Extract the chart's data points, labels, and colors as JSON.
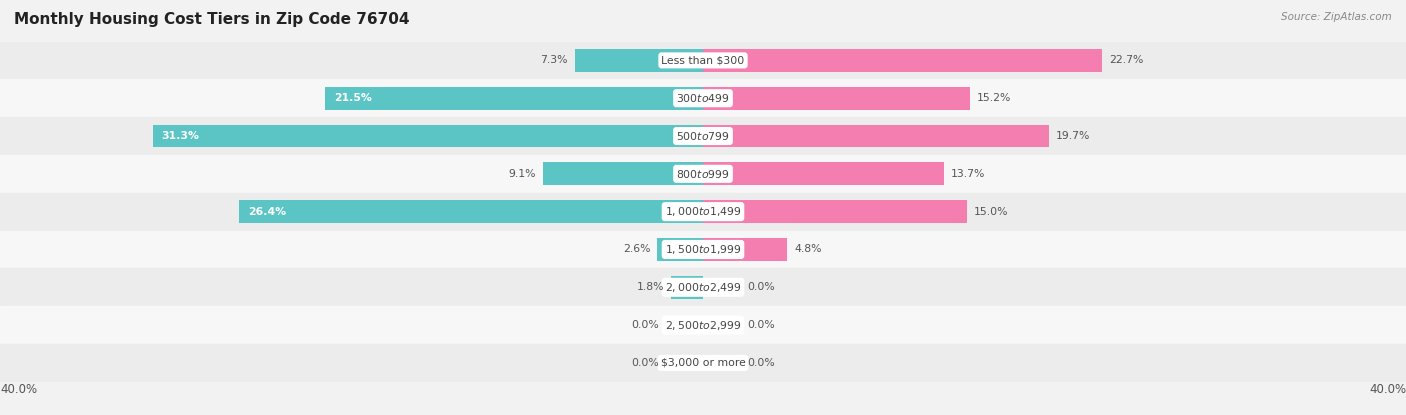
{
  "title": "Monthly Housing Cost Tiers in Zip Code 76704",
  "source": "Source: ZipAtlas.com",
  "categories": [
    "Less than $300",
    "$300 to $499",
    "$500 to $799",
    "$800 to $999",
    "$1,000 to $1,499",
    "$1,500 to $1,999",
    "$2,000 to $2,499",
    "$2,500 to $2,999",
    "$3,000 or more"
  ],
  "owner_values": [
    7.3,
    21.5,
    31.3,
    9.1,
    26.4,
    2.6,
    1.8,
    0.0,
    0.0
  ],
  "renter_values": [
    22.7,
    15.2,
    19.7,
    13.7,
    15.0,
    4.8,
    0.0,
    0.0,
    0.0
  ],
  "owner_color": "#5BC4C4",
  "renter_color": "#F47EB0",
  "max_value": 40.0,
  "bg_color": "#f2f2f2",
  "row_even_color": "#ececec",
  "row_odd_color": "#f7f7f7",
  "title_color": "#222222",
  "value_color_outside": "#555555",
  "value_color_inside": "#ffffff",
  "legend_owner_color": "#5BC4C4",
  "legend_renter_color": "#F47EB0",
  "center_label_bg": "#ffffff",
  "center_label_text": "#444444"
}
